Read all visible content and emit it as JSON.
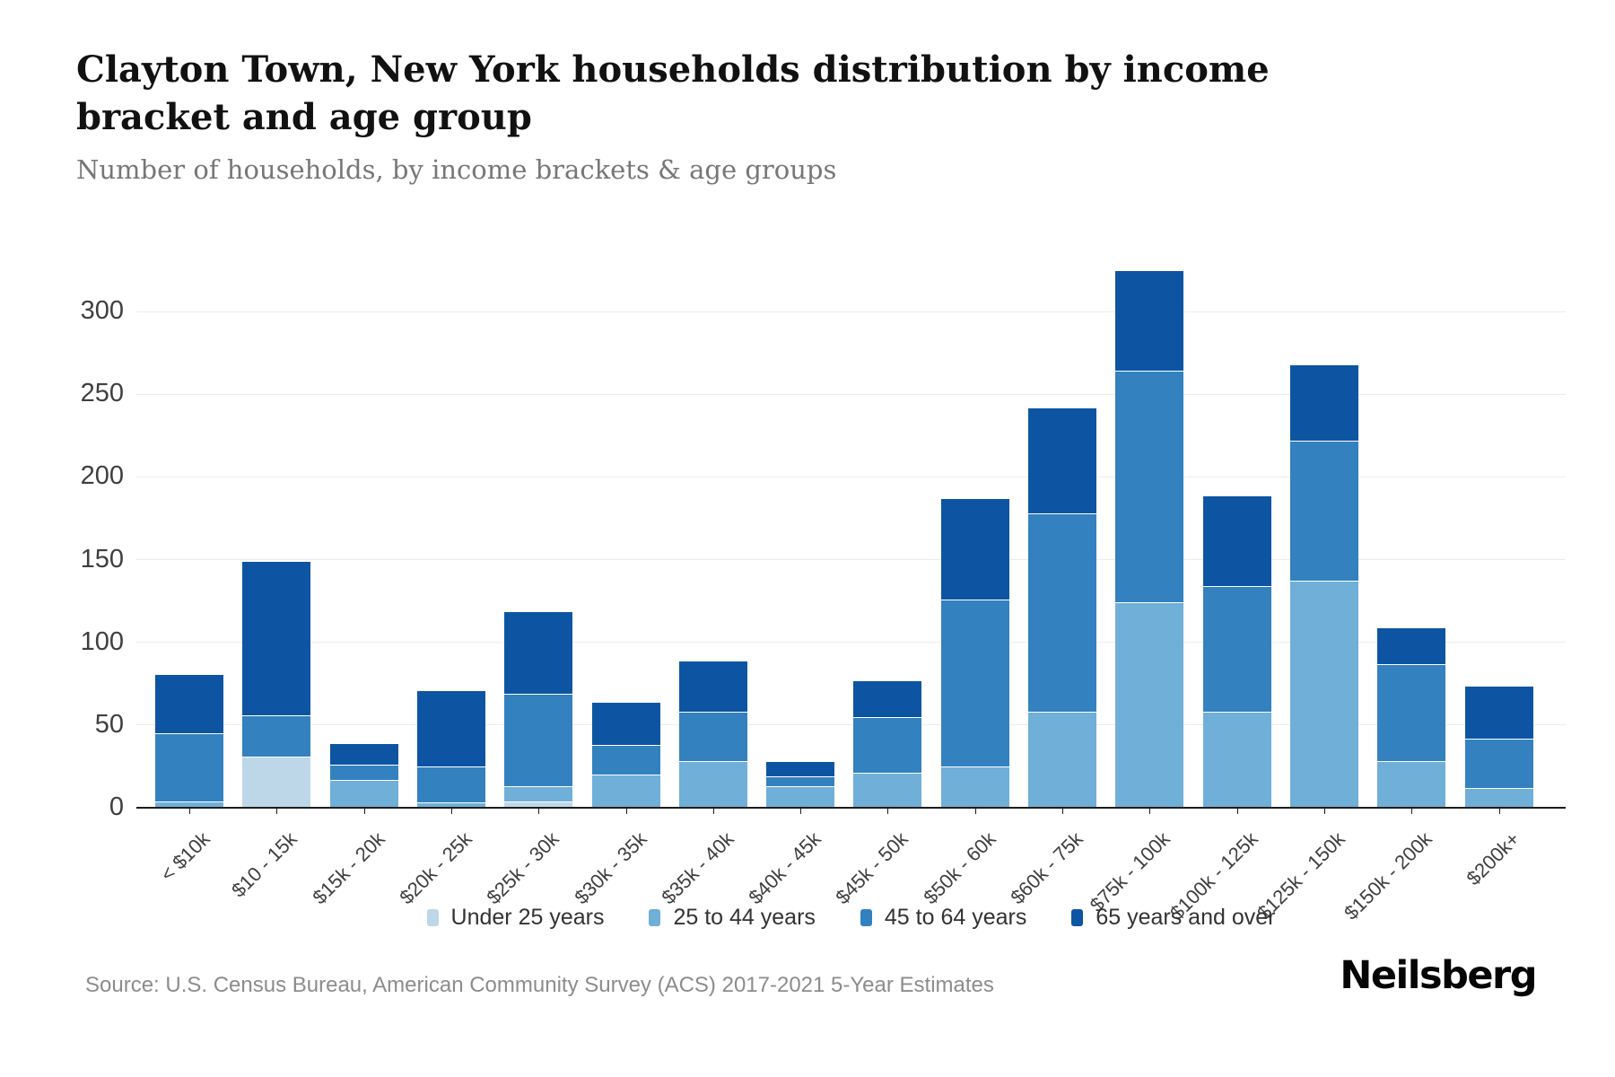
{
  "chart_data": {
    "type": "bar",
    "stacked": true,
    "title": "Clayton Town, New York households distribution by income bracket and age group",
    "subtitle": "Number of households, by income brackets & age groups",
    "categories": [
      "< $10k",
      "$10 - 15k",
      "$15k - 20k",
      "$20k - 25k",
      "$25k - 30k",
      "$30k - 35k",
      "$35k - 40k",
      "$40k - 45k",
      "$45k - 50k",
      "$50k - 60k",
      "$60k - 75k",
      "$75k - 100k",
      "$100k - 125k",
      "$125k - 150k",
      "$150k - 200k",
      "$200k+"
    ],
    "series": [
      {
        "name": "Under 25 years",
        "color": "#bdd7e8",
        "values": [
          0,
          31,
          0,
          0,
          4,
          0,
          0,
          0,
          0,
          0,
          0,
          0,
          0,
          0,
          0,
          0
        ]
      },
      {
        "name": "25 to 44 years",
        "color": "#6fafd8",
        "values": [
          4,
          0,
          17,
          3,
          9,
          20,
          28,
          13,
          21,
          25,
          58,
          124,
          58,
          137,
          28,
          12
        ]
      },
      {
        "name": "45 to 64 years",
        "color": "#3381bf",
        "values": [
          41,
          25,
          9,
          22,
          56,
          18,
          30,
          6,
          34,
          101,
          120,
          140,
          76,
          85,
          59,
          30
        ]
      },
      {
        "name": "65 years and over",
        "color": "#0d55a2",
        "values": [
          36,
          93,
          13,
          46,
          50,
          26,
          31,
          9,
          22,
          61,
          64,
          61,
          55,
          46,
          22,
          32
        ]
      }
    ],
    "totals": [
      81,
      149,
      39,
      71,
      119,
      64,
      89,
      28,
      77,
      187,
      242,
      325,
      189,
      268,
      109,
      74
    ],
    "xlabel": "",
    "ylabel": "",
    "ylim": [
      0,
      300
    ],
    "yticks": [
      0,
      50,
      100,
      150,
      200,
      250,
      300
    ],
    "grid": true,
    "legend_position": "bottom"
  },
  "footer": {
    "source": "Source: U.S. Census Bureau, American Community Survey (ACS) 2017-2021 5-Year Estimates",
    "brand": "Neilsberg"
  }
}
